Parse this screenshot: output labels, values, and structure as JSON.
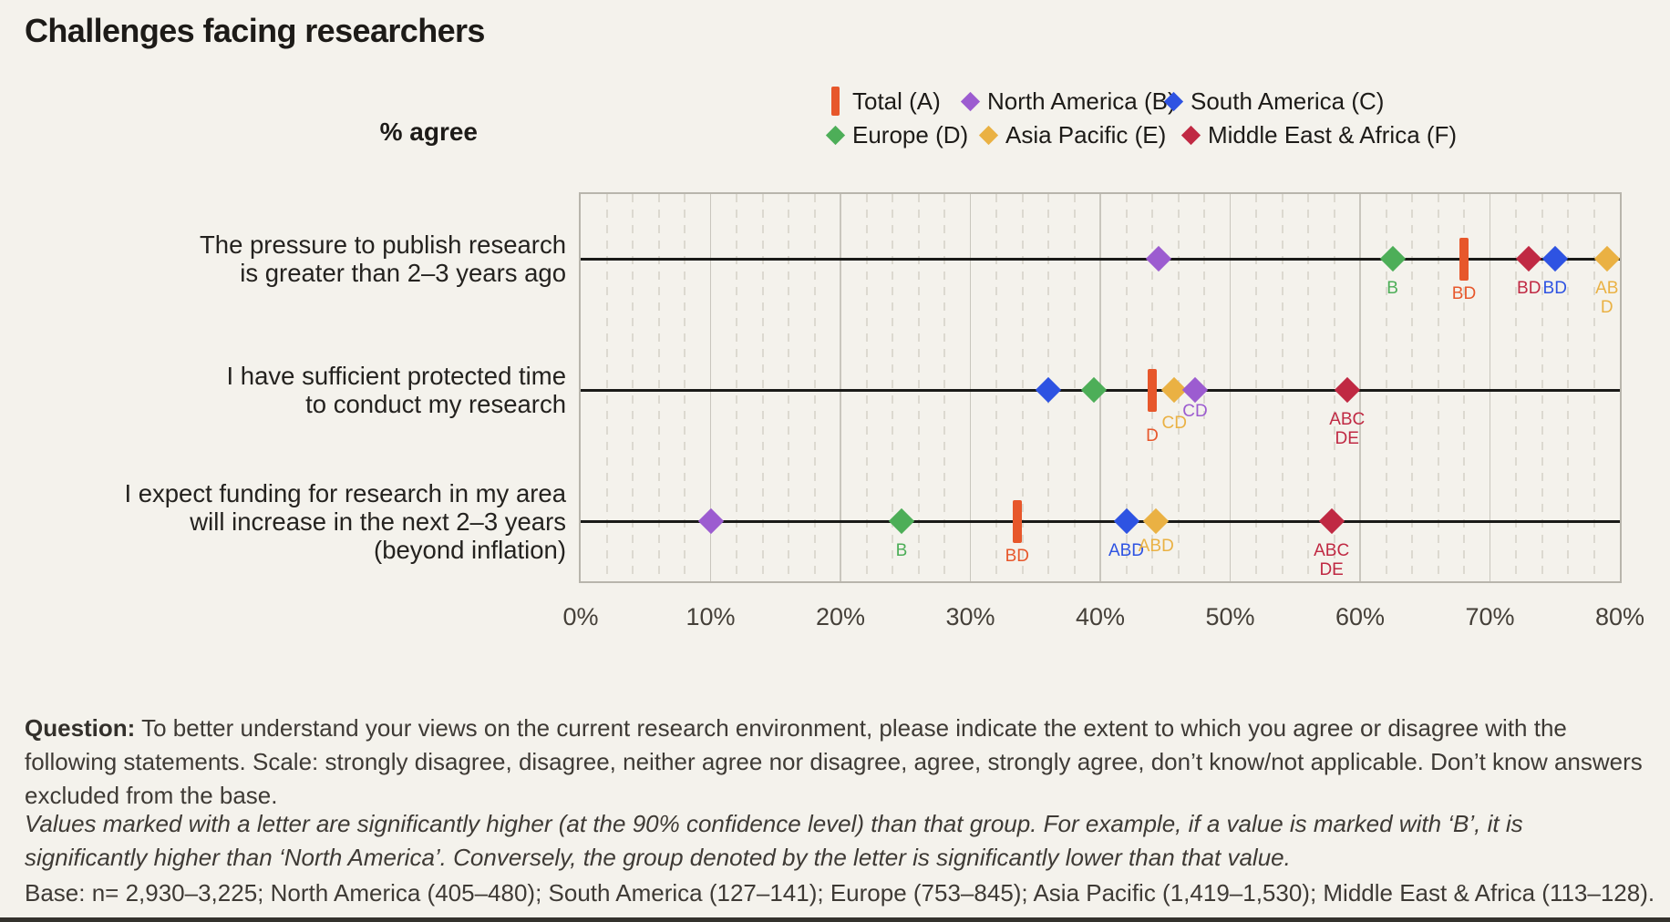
{
  "page": {
    "title": "Challenges facing researchers",
    "axis_unit_label": "% agree"
  },
  "chart_data": {
    "type": "scatter",
    "subtype": "horizontal-dot-plot",
    "title": "Challenges facing researchers",
    "xlabel": "% agree",
    "xlim": [
      0,
      80
    ],
    "x_tick_labels": [
      "0%",
      "10%",
      "20%",
      "30%",
      "40%",
      "50%",
      "60%",
      "70%",
      "80%"
    ],
    "grid": {
      "minor_step_pct": 2,
      "major_step_pct": 10
    },
    "legend_position": "top-right",
    "legend": [
      {
        "id": "A",
        "label": "Total (A)",
        "marker": "bar",
        "color": "#e7572b"
      },
      {
        "id": "B",
        "label": "North America (B)",
        "marker": "diamond",
        "color": "#9c5cd0"
      },
      {
        "id": "C",
        "label": "South America (C)",
        "marker": "diamond",
        "color": "#2e53e2"
      },
      {
        "id": "D",
        "label": "Europe (D)",
        "marker": "diamond",
        "color": "#4dae58"
      },
      {
        "id": "E",
        "label": "Asia Pacific (E)",
        "marker": "diamond",
        "color": "#eab143"
      },
      {
        "id": "F",
        "label": "Middle East & Africa (F)",
        "marker": "diamond",
        "color": "#c02943"
      }
    ],
    "rows": [
      {
        "statement_lines": [
          "The pressure to publish research",
          "is greater than 2–3 years ago"
        ],
        "points": [
          {
            "series": "B",
            "value": 44.5,
            "sig": []
          },
          {
            "series": "D",
            "value": 62.5,
            "sig": [
              "B"
            ]
          },
          {
            "series": "A",
            "value": 68,
            "sig": [
              "BD"
            ],
            "dy": 28
          },
          {
            "series": "F",
            "value": 73,
            "sig": [
              "BD"
            ]
          },
          {
            "series": "C",
            "value": 75,
            "sig": [
              "BD"
            ]
          },
          {
            "series": "E",
            "value": 79,
            "sig": [
              "AB",
              "D"
            ]
          }
        ]
      },
      {
        "statement_lines": [
          "I have sufficient protected time",
          "to conduct my research"
        ],
        "points": [
          {
            "series": "C",
            "value": 36,
            "sig": []
          },
          {
            "series": "D",
            "value": 39.5,
            "sig": []
          },
          {
            "series": "A",
            "value": 44,
            "sig": [
              "D"
            ],
            "dy": 40
          },
          {
            "series": "E",
            "value": 45.7,
            "sig": [
              "CD"
            ],
            "dy": 26
          },
          {
            "series": "B",
            "value": 47.3,
            "sig": [
              "CD"
            ],
            "dy": 13
          },
          {
            "series": "F",
            "value": 59,
            "sig": [
              "ABC",
              "DE"
            ]
          }
        ]
      },
      {
        "statement_lines": [
          "I expect funding for research in my area",
          "will increase in the next 2–3 years",
          "(beyond inflation)"
        ],
        "points": [
          {
            "series": "B",
            "value": 10,
            "sig": []
          },
          {
            "series": "D",
            "value": 24.7,
            "sig": [
              "B"
            ]
          },
          {
            "series": "A",
            "value": 33.6,
            "sig": [
              "BD"
            ],
            "dy": 28
          },
          {
            "series": "C",
            "value": 42,
            "sig": [
              "ABD"
            ]
          },
          {
            "series": "E",
            "value": 44.3,
            "sig": [
              "ABD"
            ],
            "dy": 17
          },
          {
            "series": "F",
            "value": 57.8,
            "sig": [
              "ABC",
              "DE"
            ]
          }
        ]
      }
    ]
  },
  "footer": {
    "question": {
      "label": "Question:",
      "lines": [
        " To better understand your views on the current research environment, please indicate the extent to which you agree or disagree with the",
        "following statements. Scale: strongly disagree, disagree, neither agree nor disagree, agree, strongly agree, don’t know/not applicable. Don’t know answers",
        "excluded from the base."
      ]
    },
    "significance_note_lines": [
      "Values marked with a letter are significantly higher (at the 90% confidence level) than that group. For example, if a value is marked with ‘B’, it is",
      "significantly higher than ‘North America’. Conversely, the group denoted by the letter is significantly lower than that value."
    ],
    "base_note": "Base: n= 2,930–3,225; North America (405–480); South America (127–141); Europe (753–845); Asia Pacific (1,419–1,530); Middle East & Africa (113–128)."
  }
}
